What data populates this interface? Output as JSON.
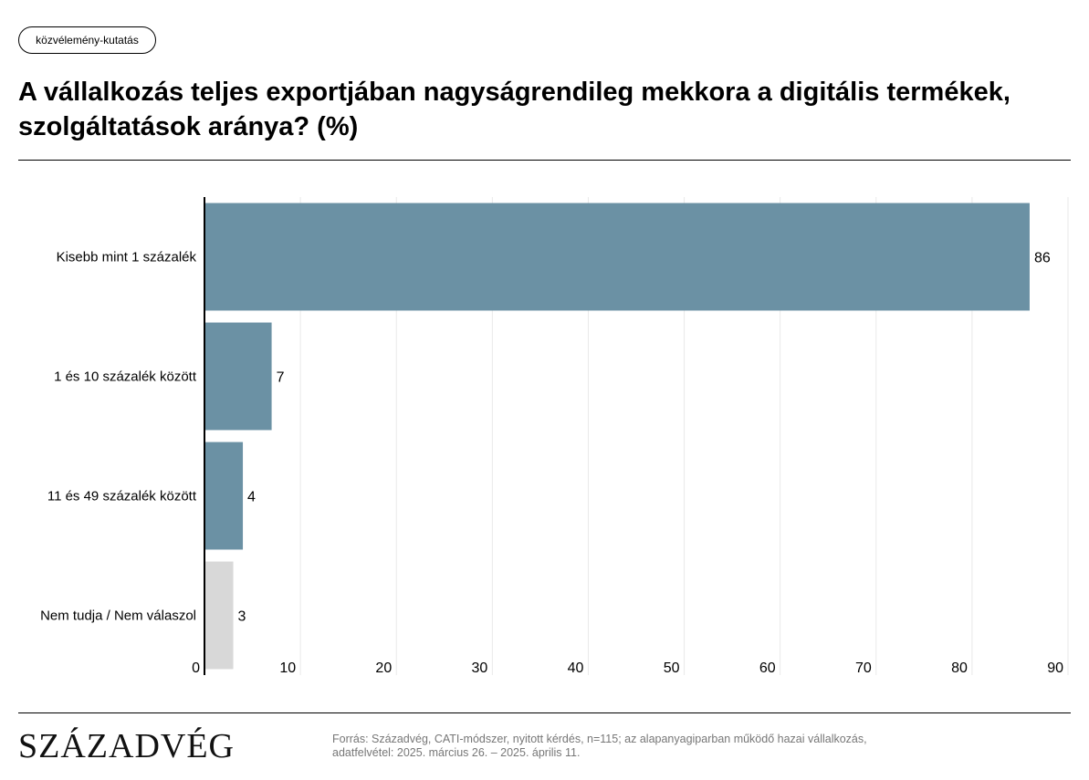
{
  "tag": "közvélemény-kutatás",
  "title": "A vállalkozás teljes exportjában nagyságrendileg mekkora a digitális termékek, szolgáltatások aránya? (%)",
  "logo": "SZÁZADVÉG",
  "source_line1": "Forrás: Századvég, CATI-módszer, nyitott kérdés, n=115; az alapanyagiparban működő hazai vállalkozás,",
  "source_line2": "adatfelvétel: 2025. március 26. – 2025. április 11.",
  "chart_data": {
    "type": "bar",
    "orientation": "horizontal",
    "title": "",
    "xlabel": "",
    "ylabel": "",
    "categories": [
      "Kisebb mint 1 százalék",
      "1 és 10 százalék között",
      "11 és 49 százalék között",
      "Nem tudja / Nem válaszol"
    ],
    "values": [
      86,
      7,
      4,
      3
    ],
    "bar_colors": [
      "#6b91a4",
      "#6b91a4",
      "#6b91a4",
      "#d8d8d8"
    ],
    "xlim": [
      0,
      90
    ],
    "ticks": [
      0,
      10,
      20,
      30,
      40,
      50,
      60,
      70,
      80,
      90
    ],
    "grid": true,
    "data_labels": true
  }
}
